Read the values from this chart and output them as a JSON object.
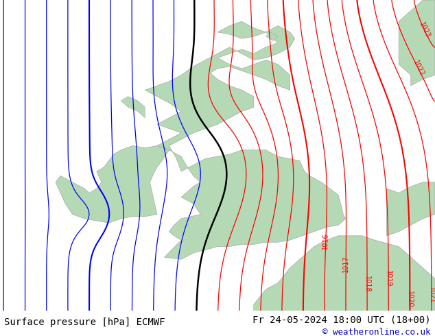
{
  "title_left": "Surface pressure [hPa] ECMWF",
  "title_right": "Fr 24-05-2024 18:00 UTC (18+00)",
  "copyright": "© weatheronline.co.uk",
  "bg_color": "#dcdcdc",
  "land_color": "#b5d9b5",
  "sea_color": "#dcdcdc",
  "figsize": [
    6.34,
    4.9
  ],
  "dpi": 100,
  "lon_min": -12.5,
  "lon_max": 5.5,
  "lat_min": 47.5,
  "lat_max": 62.0
}
